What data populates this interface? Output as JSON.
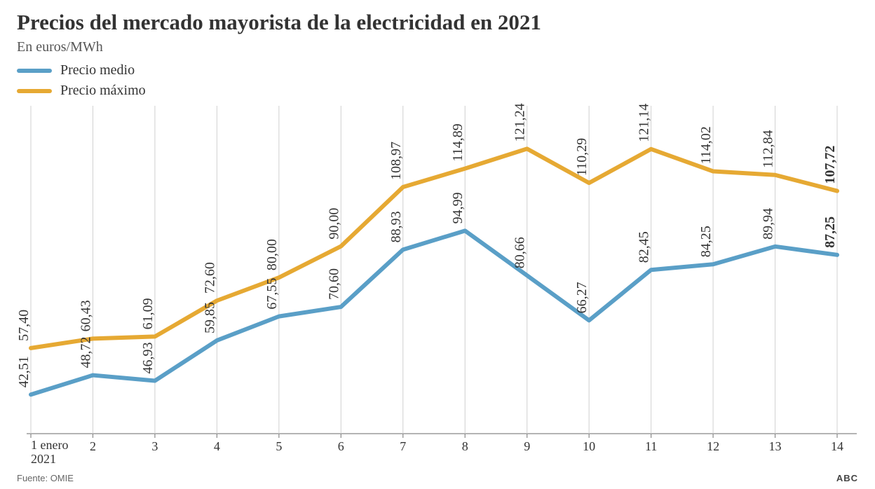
{
  "title": "Precios del mercado mayorista de la electricidad en 2021",
  "subtitle": "En euros/MWh",
  "source": "Fuente: OMIE",
  "attribution": "ABC",
  "legend": {
    "medio": "Precio medio",
    "maximo": "Precio máximo"
  },
  "chart": {
    "type": "line",
    "background_color": "#ffffff",
    "grid_color": "#d0d0d0",
    "axis_color": "#888888",
    "line_width": 6,
    "marker_radius": 0,
    "label_fontsize": 20,
    "axis_fontsize": 18,
    "value_label_rotation": -90,
    "ylim": [
      30,
      135
    ],
    "x_labels": [
      "1 enero 2021",
      "2",
      "3",
      "4",
      "5",
      "6",
      "7",
      "8",
      "9",
      "10",
      "11",
      "12",
      "13",
      "14"
    ],
    "series": [
      {
        "id": "maximo",
        "name": "Precio máximo",
        "color": "#e6a933",
        "values": [
          57.4,
          60.43,
          61.09,
          72.6,
          80.0,
          90.0,
          108.97,
          114.89,
          121.24,
          110.29,
          121.14,
          114.02,
          112.84,
          107.72
        ],
        "labels": [
          "57,40",
          "60,43",
          "61,09",
          "72,60",
          "80,00",
          "90,00",
          "108,97",
          "114,89",
          "121,24",
          "110,29",
          "121,14",
          "114,02",
          "112,84",
          "107,72"
        ],
        "last_bold": true
      },
      {
        "id": "medio",
        "name": "Precio medio",
        "color": "#5a9fc7",
        "values": [
          42.51,
          48.72,
          46.93,
          59.85,
          67.55,
          70.6,
          88.93,
          94.99,
          80.66,
          66.27,
          82.45,
          84.25,
          89.94,
          87.25
        ],
        "labels": [
          "42,51",
          "48,72",
          "46,93",
          "59,85",
          "67,55",
          "70,60",
          "88,93",
          "94,99",
          "80,66",
          "66,27",
          "82,45",
          "84,25",
          "89,94",
          "87,25"
        ],
        "last_bold": true
      }
    ]
  }
}
